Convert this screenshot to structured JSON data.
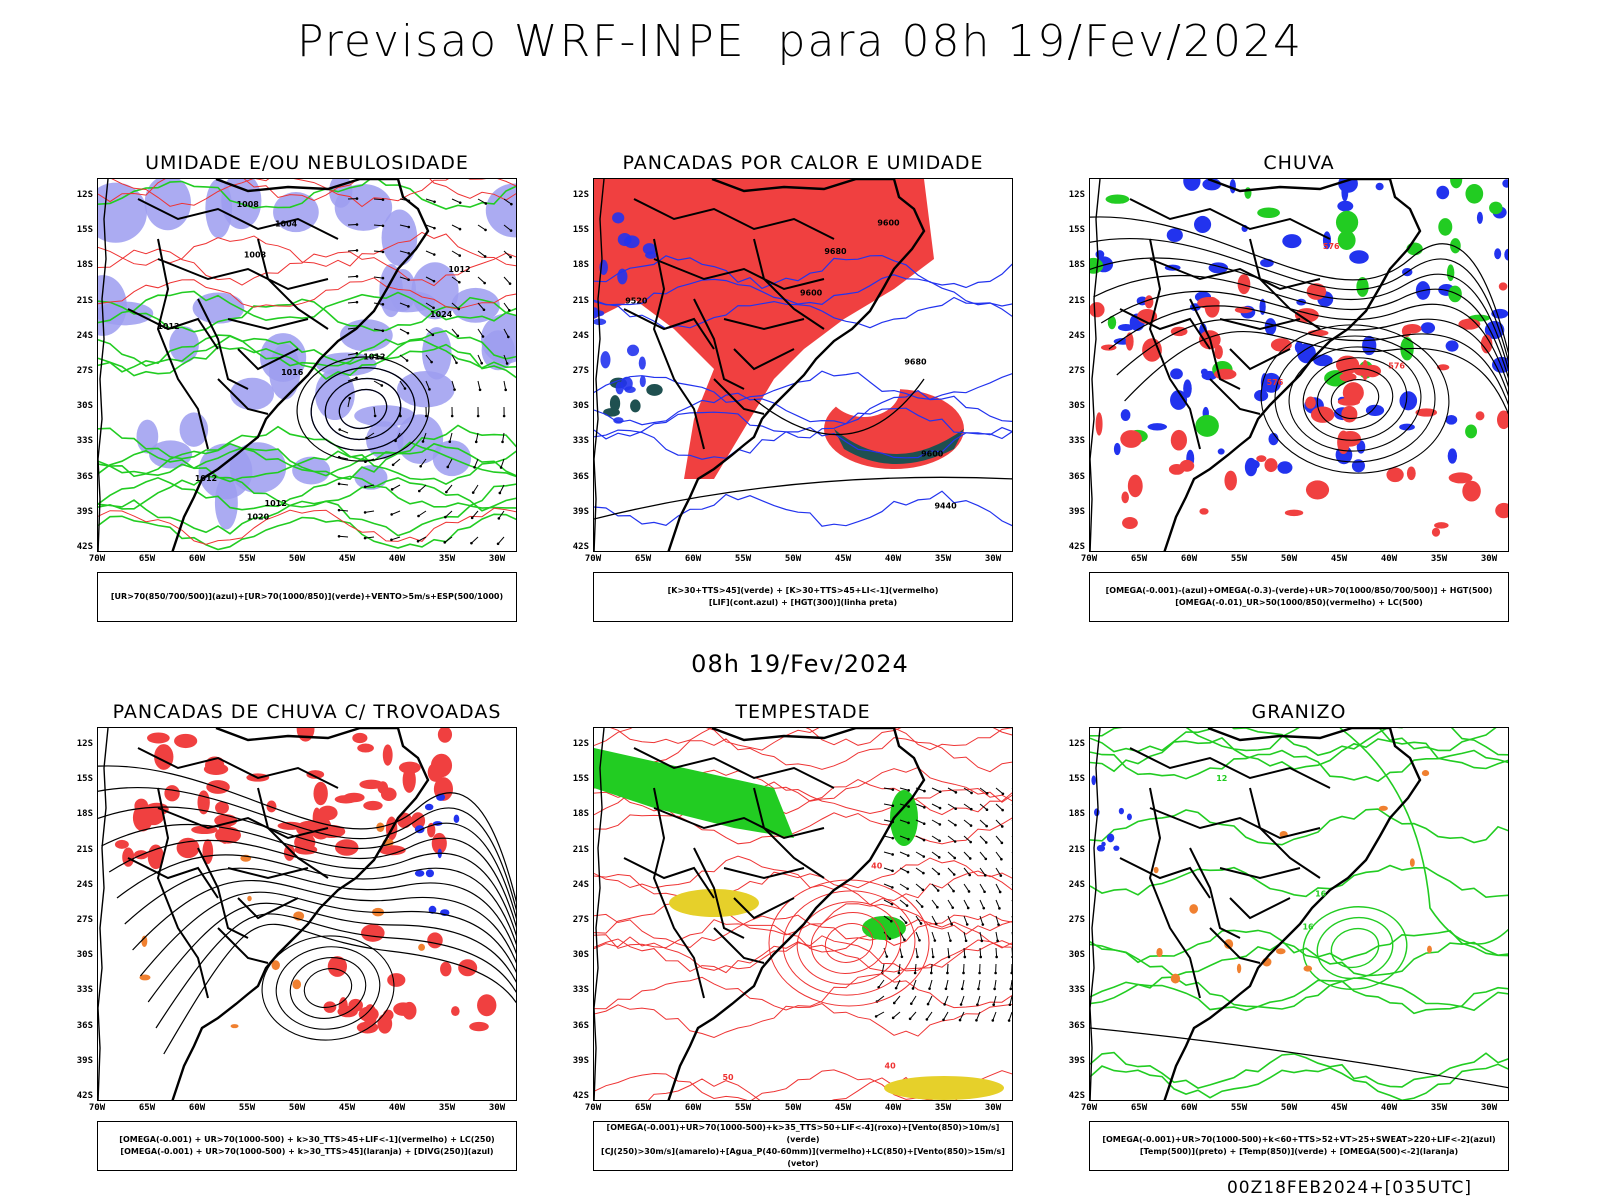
{
  "header": {
    "title": "Previsao WRF-INPE  para 08h 19/Fev/2024",
    "middle_subtitle": "08h 19/Fev/2024",
    "footer": "00Z18FEB2024+[035UTC]"
  },
  "axes": {
    "lat_labels": [
      "12S",
      "15S",
      "18S",
      "21S",
      "24S",
      "27S",
      "30S",
      "33S",
      "36S",
      "39S",
      "42S"
    ],
    "lon_labels": [
      "70W",
      "65W",
      "60W",
      "55W",
      "50W",
      "45W",
      "40W",
      "35W",
      "30W"
    ]
  },
  "colors": {
    "blue_shade": "#9c9cf0",
    "green_line": "#22cc22",
    "red_line": "#ee3333",
    "red_fill": "#f04040",
    "dark_teal": "#1f5050",
    "blue": "#2233ee",
    "green": "#22cc22",
    "orange": "#f08030",
    "yellow": "#e6d02a",
    "purple": "#9933cc"
  },
  "panels": [
    {
      "id": "umidade",
      "title": "UMIDADE E/OU NEBULOSIDADE",
      "legend": [
        "[UR>70(850/700/500)](azul)+[UR>70(1000/850)](verde)+VENTO>5m/s+ESP(500/1000)"
      ],
      "contour_labels": [
        "1012",
        "1012",
        "1012",
        "1012",
        "1008",
        "1008",
        "1012",
        "1004",
        "1016",
        "1020",
        "1024"
      ]
    },
    {
      "id": "pancadas-calor",
      "title": "PANCADAS POR CALOR E UMIDADE",
      "legend": [
        "[K>30+TTS>45](verde) + [K>30+TTS>45+LI<-1](vermelho)",
        "[LIF](cont.azul) + [HGT(300)](linha preta)"
      ],
      "contour_labels": [
        "9680",
        "9680",
        "9600",
        "9600",
        "9600",
        "9520",
        "9440"
      ]
    },
    {
      "id": "chuva",
      "title": "CHUVA",
      "legend": [
        "[OMEGA(-0.001)-(azul)+OMEGA(-0.3)-(verde)+UR>70(1000/850/700/500)] + HGT(500)",
        "[OMEGA(-0.01)_UR>50(1000/850)(vermelho) + LC(500)"
      ],
      "contour_labels": [
        "576",
        "576",
        "576"
      ]
    },
    {
      "id": "trovoadas",
      "title": "PANCADAS DE CHUVA C/ TROVOADAS",
      "legend": [
        "[OMEGA(-0.001) + UR>70(1000-500) + k>30_TTS>45+LIF<-1](vermelho) + LC(250)",
        "[OMEGA(-0.001) + UR>70(1000-500) + k>30_TTS>45](laranja) + [DIVG(250)](azul)"
      ],
      "contour_labels": []
    },
    {
      "id": "tempestade",
      "title": "TEMPESTADE",
      "legend": [
        "[OMEGA(-0.001)+UR>70(1000-500)+k>35_TTS>50+LIF<-4](roxo)+[Vento(850)>10m/s](verde)",
        "[CJ(250)>30m/s](amarelo)+[Agua_P(40-60mm)](vermelho)+LC(850)+[Vento(850)>15m/s](vetor)"
      ],
      "contour_labels": [
        "40",
        "50",
        "40"
      ]
    },
    {
      "id": "granizo",
      "title": "GRANIZO",
      "legend": [
        "[OMEGA(-0.001)+UR>70(1000-500)+k<60+TTS>52+VT>25+SWEAT>220+LIF<-2](azul)",
        "[Temp(500)](preto) + [Temp(850)](verde) + [OMEGA(500)<-2](laranja)"
      ],
      "contour_labels": [
        "16",
        "16",
        "12"
      ]
    }
  ]
}
